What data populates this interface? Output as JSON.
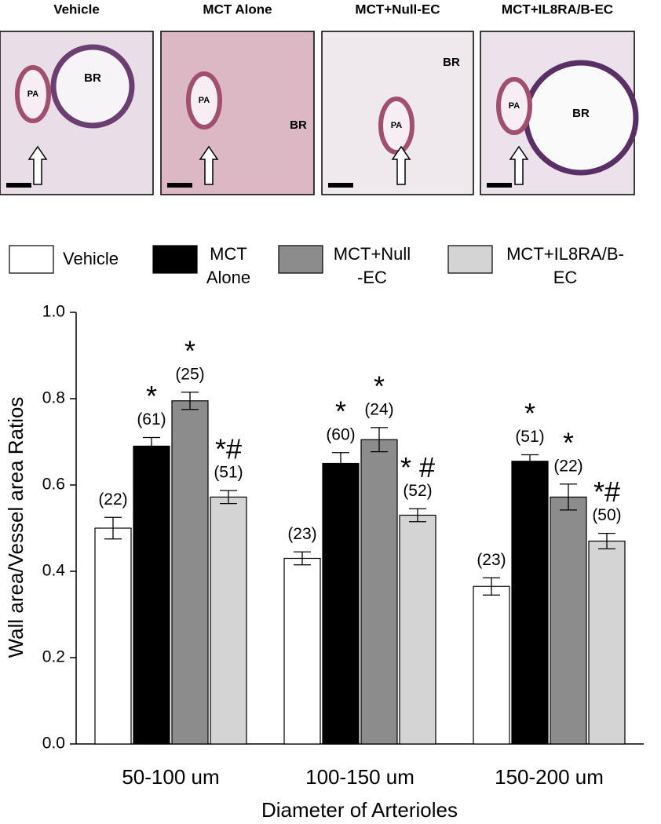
{
  "panels": [
    {
      "label": "Vehicle",
      "tags": [
        "PA",
        "BR"
      ]
    },
    {
      "label": "MCT Alone",
      "tags": [
        "PA",
        "BR"
      ]
    },
    {
      "label": "MCT+Null-EC",
      "tags": [
        "PA",
        "BR"
      ]
    },
    {
      "label": "MCT+IL8RA/B-EC",
      "tags": [
        "PA",
        "BR"
      ]
    }
  ],
  "chart_data": {
    "type": "bar",
    "y_label": "Wall area/Vessel area Ratios",
    "x_label": "Diameter of Arterioles",
    "categories": [
      "50-100 um",
      "100-150 um",
      "150-200 um"
    ],
    "series": [
      {
        "name": "Vehicle",
        "color": "#ffffff",
        "values": [
          0.5,
          0.43,
          0.365
        ],
        "errors": [
          0.025,
          0.015,
          0.02
        ],
        "annotations": [
          "(22)",
          "(23)",
          "(23)"
        ]
      },
      {
        "name": "MCT\nAlone",
        "color": "#000000",
        "values": [
          0.69,
          0.65,
          0.655
        ],
        "errors": [
          0.02,
          0.025,
          0.015
        ],
        "annotations": [
          "(61)",
          "(60)",
          "(51)"
        ],
        "marks": [
          "*",
          "*",
          "*"
        ]
      },
      {
        "name": "MCT+Null\n-EC",
        "color": "#8c8c8c",
        "values": [
          0.795,
          0.705,
          0.572
        ],
        "errors": [
          0.02,
          0.028,
          0.03
        ],
        "annotations": [
          "(25)",
          "(24)",
          "(22)"
        ],
        "marks": [
          "*",
          "*",
          "*"
        ]
      },
      {
        "name": "MCT+IL8RA/B-\nEC",
        "color": "#d4d4d4",
        "values": [
          0.572,
          0.53,
          0.47
        ],
        "errors": [
          0.015,
          0.015,
          0.018
        ],
        "annotations": [
          "(51)",
          "(52)",
          "(50)"
        ],
        "marks": [
          "*#",
          "* #",
          "*#"
        ]
      }
    ],
    "ylim": [
      0,
      1.0
    ],
    "yticks": [
      {
        "value": 0,
        "label": "0.0"
      },
      0.2,
      0.4,
      0.6,
      0.8,
      {
        "value": 1.0,
        "label": "1.0"
      }
    ]
  }
}
